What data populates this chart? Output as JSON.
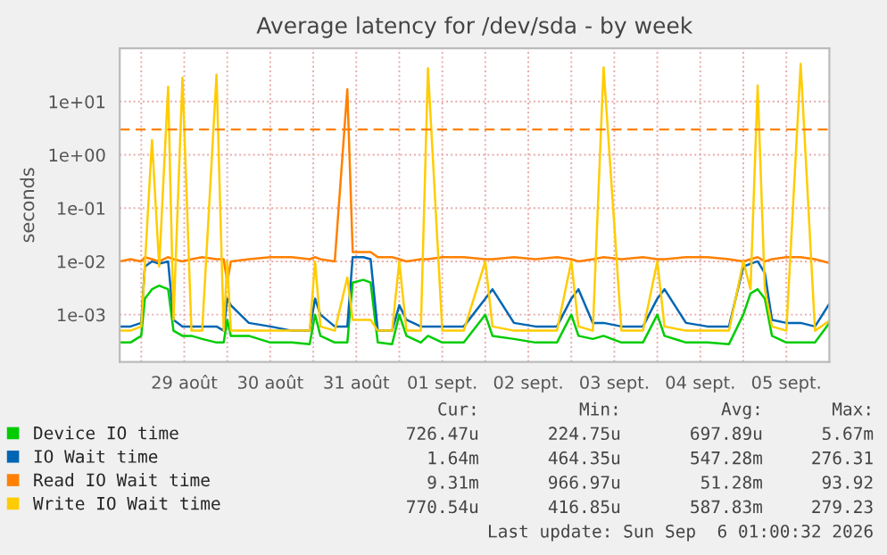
{
  "chart_data": {
    "type": "line",
    "title": "Average latency for /dev/sda - by week",
    "ylabel": "seconds",
    "x": [
      "2026-08-28T18:00",
      "2026-08-28T21:00",
      "2026-08-29T00:00",
      "2026-08-29T01:00",
      "2026-08-29T03:00",
      "2026-08-29T05:00",
      "2026-08-29T07:30",
      "2026-08-29T09:00",
      "2026-08-29T11:30",
      "2026-08-29T14:00",
      "2026-08-29T17:00",
      "2026-08-29T21:00",
      "2026-08-29T23:00",
      "2026-08-30T00:00",
      "2026-08-30T01:00",
      "2026-08-30T06:00",
      "2026-08-30T12:00",
      "2026-08-30T18:00",
      "2026-08-30T23:00",
      "2026-08-31T00:30",
      "2026-08-31T02:00",
      "2026-08-31T06:00",
      "2026-08-31T09:30",
      "2026-08-31T11:00",
      "2026-08-31T14:00",
      "2026-08-31T16:00",
      "2026-08-31T18:00",
      "2026-08-31T22:00",
      "2026-09-01T00:00",
      "2026-09-01T02:00",
      "2026-09-01T06:00",
      "2026-09-01T08:00",
      "2026-09-01T12:00",
      "2026-09-01T18:00",
      "2026-09-02T00:00",
      "2026-09-02T02:00",
      "2026-09-02T08:00",
      "2026-09-02T14:00",
      "2026-09-02T20:00",
      "2026-09-03T00:00",
      "2026-09-03T02:00",
      "2026-09-03T06:00",
      "2026-09-03T09:00",
      "2026-09-03T14:00",
      "2026-09-03T20:00",
      "2026-09-04T00:00",
      "2026-09-04T02:00",
      "2026-09-04T08:00",
      "2026-09-04T14:00",
      "2026-09-04T20:00",
      "2026-09-05T00:00",
      "2026-09-05T02:00",
      "2026-09-05T04:00",
      "2026-09-05T06:00",
      "2026-09-05T08:00",
      "2026-09-05T12:00",
      "2026-09-05T16:00",
      "2026-09-05T20:00",
      "2026-09-06T00:00"
    ],
    "series": [
      {
        "name": "Device IO time",
        "color": "#00cc00",
        "values": [
          0.0003,
          0.0003,
          0.0004,
          0.002,
          0.003,
          0.0035,
          0.003,
          0.0005,
          0.0004,
          0.0004,
          0.00035,
          0.0003,
          0.0003,
          0.0008,
          0.0004,
          0.0004,
          0.0003,
          0.0003,
          0.00028,
          0.001,
          0.0004,
          0.0003,
          0.0003,
          0.004,
          0.0045,
          0.004,
          0.0003,
          0.00028,
          0.001,
          0.0004,
          0.0003,
          0.0004,
          0.0003,
          0.0003,
          0.001,
          0.0004,
          0.00035,
          0.0003,
          0.0003,
          0.001,
          0.0004,
          0.00035,
          0.0004,
          0.0003,
          0.0003,
          0.001,
          0.0004,
          0.0003,
          0.0003,
          0.00028,
          0.001,
          0.0025,
          0.003,
          0.002,
          0.0004,
          0.0003,
          0.0003,
          0.0003,
          0.0007
        ]
      },
      {
        "name": "IO Wait time",
        "color": "#0066b3",
        "values": [
          0.0006,
          0.0006,
          0.0007,
          0.008,
          0.01,
          0.009,
          0.01,
          0.0008,
          0.0006,
          0.0006,
          0.0006,
          0.0006,
          0.0005,
          0.002,
          0.0015,
          0.0007,
          0.0006,
          0.0005,
          0.0005,
          0.002,
          0.001,
          0.0006,
          0.0006,
          0.012,
          0.012,
          0.011,
          0.0005,
          0.0005,
          0.0015,
          0.0008,
          0.0006,
          0.0006,
          0.0006,
          0.0006,
          0.002,
          0.003,
          0.0007,
          0.0006,
          0.0006,
          0.002,
          0.003,
          0.0007,
          0.0007,
          0.0006,
          0.0006,
          0.002,
          0.003,
          0.0007,
          0.0006,
          0.0006,
          0.008,
          0.009,
          0.01,
          0.006,
          0.0008,
          0.0007,
          0.0007,
          0.0006,
          0.0016
        ]
      },
      {
        "name": "Read IO Wait time",
        "color": "#ff8000",
        "values": [
          0.01,
          0.011,
          0.01,
          0.012,
          0.011,
          0.01,
          0.012,
          0.011,
          0.01,
          0.011,
          0.012,
          0.011,
          0.011,
          0.004,
          0.01,
          0.011,
          0.012,
          0.012,
          0.011,
          0.012,
          0.011,
          0.01,
          17,
          0.015,
          0.015,
          0.015,
          0.012,
          0.012,
          0.011,
          0.01,
          0.011,
          0.011,
          0.012,
          0.012,
          0.011,
          0.011,
          0.012,
          0.011,
          0.012,
          0.011,
          0.01,
          0.011,
          0.012,
          0.011,
          0.012,
          0.011,
          0.011,
          0.012,
          0.012,
          0.011,
          0.01,
          0.011,
          0.012,
          0.01,
          0.011,
          0.012,
          0.012,
          0.011,
          0.0093
        ]
      },
      {
        "name": "Write IO Wait time",
        "color": "#ffcc00",
        "values": [
          0.0005,
          0.0005,
          0.0006,
          0.008,
          1.9,
          0.008,
          19,
          0.0008,
          28,
          0.0005,
          0.0005,
          32,
          0.0005,
          0.01,
          0.0005,
          0.0005,
          0.0005,
          0.0005,
          0.0005,
          0.01,
          0.0006,
          0.0005,
          0.005,
          0.0008,
          0.0008,
          0.0008,
          0.0005,
          0.0005,
          0.01,
          0.0005,
          0.0005,
          42,
          0.0005,
          0.0005,
          0.01,
          0.0006,
          0.0005,
          0.0005,
          0.0005,
          0.01,
          0.0006,
          0.0005,
          44,
          0.0005,
          0.0005,
          0.01,
          0.0006,
          0.0005,
          0.0005,
          0.0005,
          0.01,
          0.003,
          20,
          0.003,
          0.0006,
          0.0005,
          51,
          0.0005,
          0.00077
        ]
      }
    ],
    "log": "y",
    "ylim": [
      0.00013,
      100
    ],
    "yticks": [
      {
        "value": 0.001,
        "label": "1e-03"
      },
      {
        "value": 0.01,
        "label": "1e-02"
      },
      {
        "value": 0.1,
        "label": "1e-01"
      },
      {
        "value": 1,
        "label": "1e+00"
      },
      {
        "value": 10,
        "label": "1e+01"
      }
    ],
    "xlim": [
      "2026-08-28T18:00",
      "2026-09-06T00:00"
    ],
    "xticks": [
      {
        "value": "2026-08-29T00:00",
        "label": null
      },
      {
        "value": "2026-08-29T12:00",
        "label": "29 août"
      },
      {
        "value": "2026-08-30T00:00",
        "label": null
      },
      {
        "value": "2026-08-30T12:00",
        "label": "30 août"
      },
      {
        "value": "2026-08-31T00:00",
        "label": null
      },
      {
        "value": "2026-08-31T12:00",
        "label": "31 août"
      },
      {
        "value": "2026-09-01T00:00",
        "label": null
      },
      {
        "value": "2026-09-01T12:00",
        "label": "01 sept."
      },
      {
        "value": "2026-09-02T00:00",
        "label": null
      },
      {
        "value": "2026-09-02T12:00",
        "label": "02 sept."
      },
      {
        "value": "2026-09-03T00:00",
        "label": null
      },
      {
        "value": "2026-09-03T12:00",
        "label": "03 sept."
      },
      {
        "value": "2026-09-04T00:00",
        "label": null
      },
      {
        "value": "2026-09-04T12:00",
        "label": "04 sept."
      },
      {
        "value": "2026-09-05T00:00",
        "label": null
      },
      {
        "value": "2026-09-05T12:00",
        "label": "05 sept."
      }
    ],
    "ref_lines": [
      {
        "axis": "y",
        "value": 3,
        "color": "#ff8000",
        "line_style": "dashed"
      }
    ],
    "grid": true,
    "legend": "bottom",
    "annotations": [
      "Cur:",
      "Min:",
      "Avg:",
      "Max:",
      "726.47u",
      "224.75u",
      "697.89u",
      "5.67m",
      "1.64m",
      "464.35u",
      "547.28m",
      "276.31",
      "9.31m",
      "966.97u",
      "51.28m",
      "93.92",
      "770.54u",
      "416.85u",
      "587.83m",
      "279.23",
      "Last update: Sun Sep  6 01:00:32 2026"
    ]
  }
}
